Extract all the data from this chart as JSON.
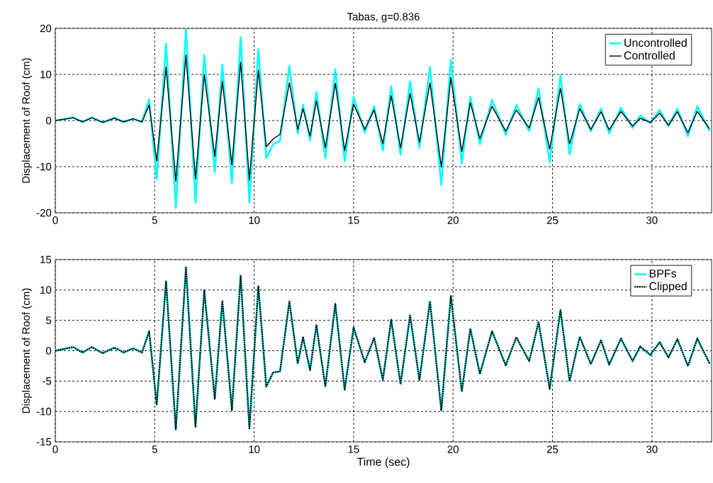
{
  "chart_data": [
    {
      "type": "line",
      "title": "Tabas, g=0.836",
      "ylabel": "Displacement of Roof (cm)",
      "x": [
        0,
        0.9,
        1.37,
        1.84,
        2.38,
        2.97,
        3.44,
        3.91,
        4.36,
        4.72,
        5.1,
        5.57,
        6.06,
        6.57,
        7.05,
        7.49,
        8.02,
        8.4,
        8.88,
        9.32,
        9.76,
        10.21,
        10.61,
        10.95,
        11.3,
        11.77,
        12.19,
        12.46,
        12.81,
        13.13,
        13.58,
        14.08,
        14.55,
        15.0,
        15.56,
        16.03,
        16.47,
        16.89,
        17.36,
        17.84,
        18.31,
        18.84,
        19.41,
        19.89,
        20.44,
        20.87,
        21.35,
        21.96,
        22.65,
        23.18,
        23.83,
        24.3,
        24.86,
        25.4,
        25.86,
        26.37,
        26.93,
        27.44,
        27.85,
        28.44,
        29.03,
        29.41,
        29.92,
        30.39,
        30.83,
        31.28,
        31.81,
        32.28,
        32.9
      ],
      "series": [
        {
          "name": "Uncontrolled",
          "color": "#00ffff",
          "line_style": "solid",
          "values": [
            0,
            0.7,
            -0.3,
            0.7,
            -0.4,
            0.6,
            -0.3,
            0.4,
            -0.3,
            4.6,
            -12.7,
            16.7,
            -18.9,
            20,
            -17.8,
            14.2,
            -11.2,
            12.1,
            -13.5,
            18.1,
            -17.8,
            15.5,
            -8.2,
            -5.2,
            -4.4,
            11.9,
            -2.8,
            3.4,
            -4.3,
            6.2,
            -8.2,
            11.2,
            -8.8,
            5.1,
            -2.6,
            3.1,
            -6.5,
            7.4,
            -7.4,
            8.5,
            -5.9,
            11.6,
            -14,
            13.2,
            -9.3,
            5.1,
            -5.1,
            4.5,
            -3.1,
            3.4,
            -2.3,
            7.0,
            -9.0,
            9.8,
            -7.3,
            3.6,
            -2.3,
            2.6,
            -2.8,
            2.8,
            -1.6,
            1.1,
            -0.5,
            2.3,
            -1.2,
            2.6,
            -3.4,
            3.1,
            -2.3
          ]
        },
        {
          "name": "Controlled",
          "color": "#000000",
          "line_style": "solid",
          "values": [
            0,
            0.6,
            -0.3,
            0.6,
            -0.4,
            0.5,
            -0.3,
            0.4,
            -0.3,
            3.4,
            -8.8,
            11.6,
            -13.2,
            14.2,
            -12.7,
            10,
            -7.8,
            8.5,
            -9.6,
            12.7,
            -12.9,
            10.9,
            -5.7,
            -4.0,
            -3.0,
            8.2,
            -1.9,
            2.6,
            -3.4,
            4.3,
            -5.9,
            8.1,
            -6.5,
            3.6,
            -1.9,
            2.3,
            -5.0,
            5.4,
            -5.9,
            5.9,
            -4.7,
            8.2,
            -10.1,
            9.3,
            -6.7,
            3.9,
            -3.9,
            3.1,
            -2.3,
            2.3,
            -1.6,
            5.0,
            -6.2,
            7.0,
            -5.1,
            2.6,
            -1.9,
            1.9,
            -2.0,
            2.0,
            -1.2,
            0.5,
            -0.4,
            1.6,
            -1.0,
            1.9,
            -2.6,
            2.0,
            -1.8
          ]
        }
      ],
      "xlim": [
        0,
        33
      ],
      "ylim": [
        -20,
        20
      ],
      "xticks": [
        0,
        5,
        10,
        15,
        20,
        25,
        30
      ],
      "yticks": [
        -20,
        -10,
        0,
        10,
        20
      ],
      "grid": true,
      "legend": "top right",
      "marker": "none"
    },
    {
      "type": "line",
      "xlabel": "Time (sec)",
      "ylabel": "Displacement of Roof (cm)",
      "x": [
        0,
        0.9,
        1.37,
        1.84,
        2.38,
        2.97,
        3.44,
        3.91,
        4.36,
        4.72,
        5.1,
        5.57,
        6.06,
        6.57,
        7.05,
        7.49,
        8.02,
        8.4,
        8.88,
        9.32,
        9.76,
        10.21,
        10.61,
        10.95,
        11.3,
        11.77,
        12.19,
        12.46,
        12.81,
        13.13,
        13.58,
        14.08,
        14.55,
        15.0,
        15.56,
        16.03,
        16.47,
        16.89,
        17.36,
        17.84,
        18.31,
        18.84,
        19.41,
        19.89,
        20.44,
        20.87,
        21.35,
        21.96,
        22.65,
        23.18,
        23.83,
        24.3,
        24.86,
        25.4,
        25.86,
        26.37,
        26.93,
        27.44,
        27.85,
        28.44,
        29.03,
        29.41,
        29.92,
        30.39,
        30.83,
        31.28,
        31.81,
        32.28,
        32.9
      ],
      "series": [
        {
          "name": "BPFs",
          "color": "#00ffff",
          "line_style": "solid",
          "values": [
            0,
            0.6,
            -0.3,
            0.6,
            -0.4,
            0.5,
            -0.3,
            0.4,
            -0.3,
            3.2,
            -8.9,
            11.4,
            -13.0,
            13.7,
            -12.5,
            9.9,
            -7.9,
            8.2,
            -9.8,
            12.4,
            -12.8,
            10.6,
            -5.9,
            -3.6,
            -3.4,
            8.1,
            -2.1,
            2.2,
            -3.2,
            4.2,
            -5.9,
            7.7,
            -6.4,
            3.8,
            -1.9,
            2.1,
            -4.8,
            5.1,
            -5.5,
            5.8,
            -4.8,
            8.1,
            -9.8,
            9.0,
            -6.7,
            3.6,
            -3.8,
            3.2,
            -2.4,
            2.2,
            -1.7,
            4.7,
            -6.3,
            6.7,
            -5.0,
            2.3,
            -2.2,
            1.7,
            -2.3,
            2.0,
            -1.7,
            0.7,
            -0.7,
            1.4,
            -1.1,
            1.9,
            -2.5,
            2.0,
            -2.1
          ]
        },
        {
          "name": "Clipped",
          "color": "#000000",
          "line_style": "dotted",
          "values": [
            0,
            0.6,
            -0.3,
            0.6,
            -0.4,
            0.5,
            -0.3,
            0.4,
            -0.3,
            3.2,
            -8.9,
            11.4,
            -13.0,
            13.7,
            -12.5,
            9.9,
            -7.9,
            8.2,
            -9.8,
            12.4,
            -12.8,
            10.6,
            -5.9,
            -3.6,
            -3.4,
            8.1,
            -2.1,
            2.2,
            -3.2,
            4.2,
            -5.9,
            7.7,
            -6.4,
            3.8,
            -1.9,
            2.1,
            -4.8,
            5.1,
            -5.5,
            5.8,
            -4.8,
            8.1,
            -9.8,
            9.0,
            -6.7,
            3.6,
            -3.8,
            3.2,
            -2.4,
            2.2,
            -1.7,
            4.7,
            -6.3,
            6.7,
            -5.0,
            2.3,
            -2.2,
            1.7,
            -2.3,
            2.0,
            -1.7,
            0.7,
            -0.7,
            1.4,
            -1.1,
            1.9,
            -2.5,
            2.0,
            -2.1
          ]
        }
      ],
      "xlim": [
        0,
        33
      ],
      "ylim": [
        -15,
        15
      ],
      "xticks": [
        0,
        5,
        10,
        15,
        20,
        25,
        30
      ],
      "yticks": [
        -15,
        -10,
        -5,
        0,
        5,
        10,
        15
      ],
      "grid": true,
      "legend": "top right",
      "marker": "none"
    }
  ]
}
